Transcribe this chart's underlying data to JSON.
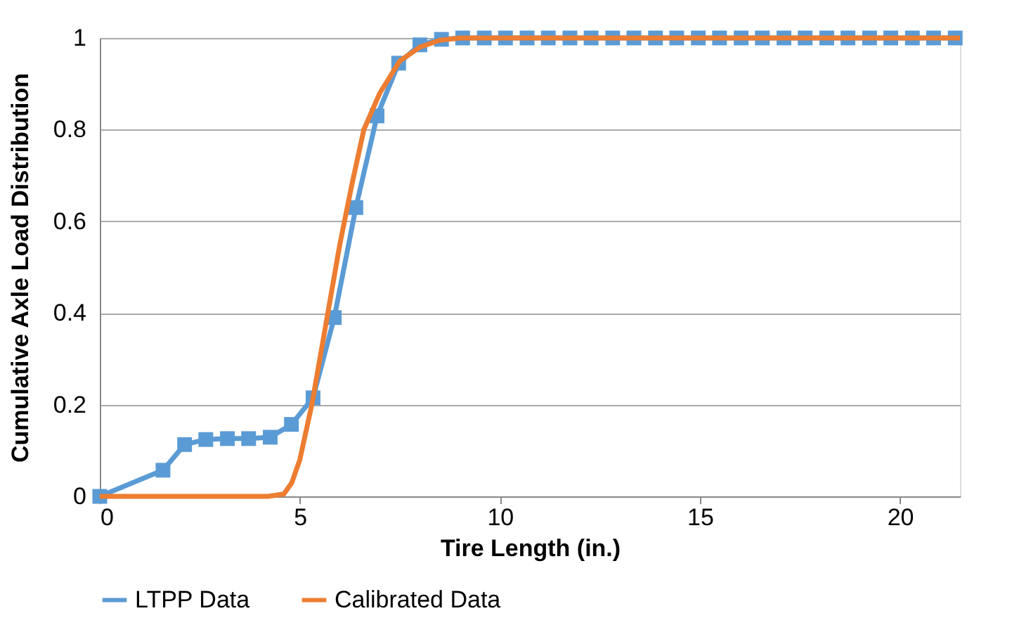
{
  "chart_data": {
    "type": "line",
    "xlabel": "Tire Length (in.)",
    "ylabel": "Cumulative Axle Load Distribution",
    "xlim": [
      0,
      21.5
    ],
    "xticks": [
      0,
      5,
      10,
      15,
      20
    ],
    "ylim": [
      0,
      1
    ],
    "yticks": [
      0,
      0.2,
      0.4,
      0.6,
      0.8,
      1
    ],
    "grid": "y",
    "legend": "bottom",
    "series": [
      {
        "name": "LTPP Data",
        "color": "#5b9bd5",
        "marker": "square",
        "x": [
          0,
          1.58,
          2.12,
          2.65,
          3.19,
          3.72,
          4.26,
          4.79,
          5.33,
          5.86,
          6.4,
          6.93,
          7.47,
          8.0,
          8.54,
          9.07,
          9.61,
          10.14,
          10.68,
          11.21,
          11.75,
          12.28,
          12.82,
          13.35,
          13.89,
          14.42,
          14.96,
          15.49,
          16.03,
          16.56,
          17.1,
          17.63,
          18.17,
          18.7,
          19.24,
          19.77,
          20.31,
          20.84,
          21.38
        ],
        "values": [
          0,
          0.057,
          0.113,
          0.124,
          0.126,
          0.126,
          0.129,
          0.157,
          0.215,
          0.39,
          0.63,
          0.83,
          0.945,
          0.985,
          0.997,
          1,
          1,
          1,
          1,
          1,
          1,
          1,
          1,
          1,
          1,
          1,
          1,
          1,
          1,
          1,
          1,
          1,
          1,
          1,
          1,
          1,
          1,
          1,
          1
        ]
      },
      {
        "name": "Calibrated Data",
        "color": "#ed7d31",
        "marker": "none",
        "x": [
          0,
          4.2,
          4.6,
          4.8,
          5.0,
          5.3,
          5.6,
          6.0,
          6.3,
          6.6,
          7.0,
          7.5,
          8.0,
          8.5,
          9.0,
          21.5
        ],
        "values": [
          0,
          0,
          0.005,
          0.03,
          0.08,
          0.2,
          0.35,
          0.55,
          0.68,
          0.8,
          0.88,
          0.95,
          0.98,
          0.995,
          1,
          1
        ]
      }
    ]
  }
}
